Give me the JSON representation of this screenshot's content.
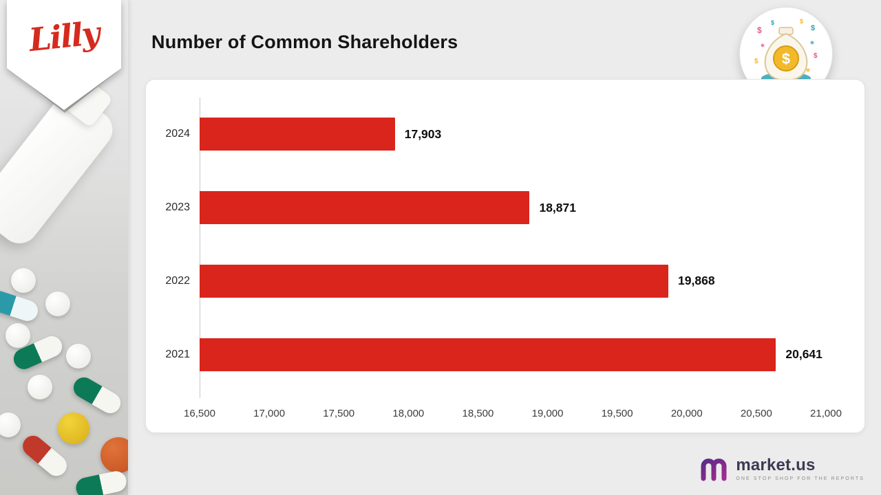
{
  "page": {
    "background": "#ececec"
  },
  "sidebar": {
    "logo_text": "Lilly",
    "brand_color": "#d52b1e"
  },
  "header": {
    "title": "Number of Common Shareholders"
  },
  "badge": {
    "icon": "money-bag",
    "dollar_symbol": "$"
  },
  "chart_data": {
    "type": "bar",
    "orientation": "horizontal",
    "title": "Number of Common Shareholders",
    "categories": [
      "2024",
      "2023",
      "2022",
      "2021"
    ],
    "values": [
      17903,
      18871,
      19868,
      20641
    ],
    "value_labels": [
      "17,903",
      "18,871",
      "19,868",
      "20,641"
    ],
    "xlim": [
      16500,
      21000
    ],
    "x_ticks": [
      "16,500",
      "17,000",
      "17,500",
      "18,000",
      "18,500",
      "19,000",
      "19,500",
      "20,000",
      "20,500",
      "21,000"
    ],
    "bar_color": "#d9251c",
    "grid": false,
    "legend": false
  },
  "footer": {
    "brand": "market.us",
    "tagline": "ONE STOP SHOP FOR THE REPORTS",
    "accent_color": "#7c2d8e"
  }
}
